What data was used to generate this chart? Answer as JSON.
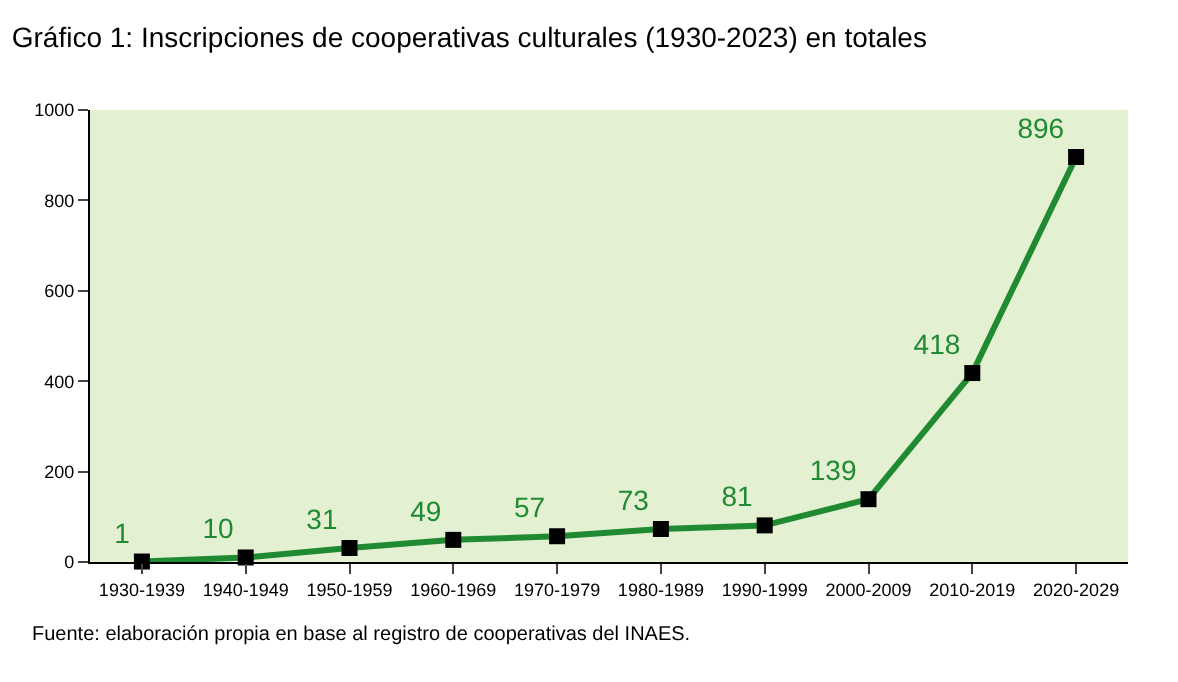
{
  "chart_data": {
    "type": "line",
    "title": "Gráfico 1: Inscripciones de cooperativas culturales (1930-2023) en totales",
    "categories": [
      "1930-1939",
      "1940-1949",
      "1950-1959",
      "1960-1969",
      "1970-1979",
      "1980-1989",
      "1990-1999",
      "2000-2009",
      "2010-2019",
      "2020-2029"
    ],
    "series": [
      {
        "color": "#1f8a32",
        "values": [
          1,
          10,
          31,
          49,
          57,
          73,
          81,
          139,
          418,
          896
        ]
      }
    ],
    "ylim": [
      0,
      1000
    ],
    "yticks": [
      0,
      200,
      400,
      600,
      800,
      1000
    ],
    "data_labels": true,
    "marker": "square",
    "line_style": "solid",
    "grid": false,
    "legend": false,
    "annotations": [
      "Fuente: elaboración propia en base al registro de cooperativas del INAES."
    ]
  }
}
